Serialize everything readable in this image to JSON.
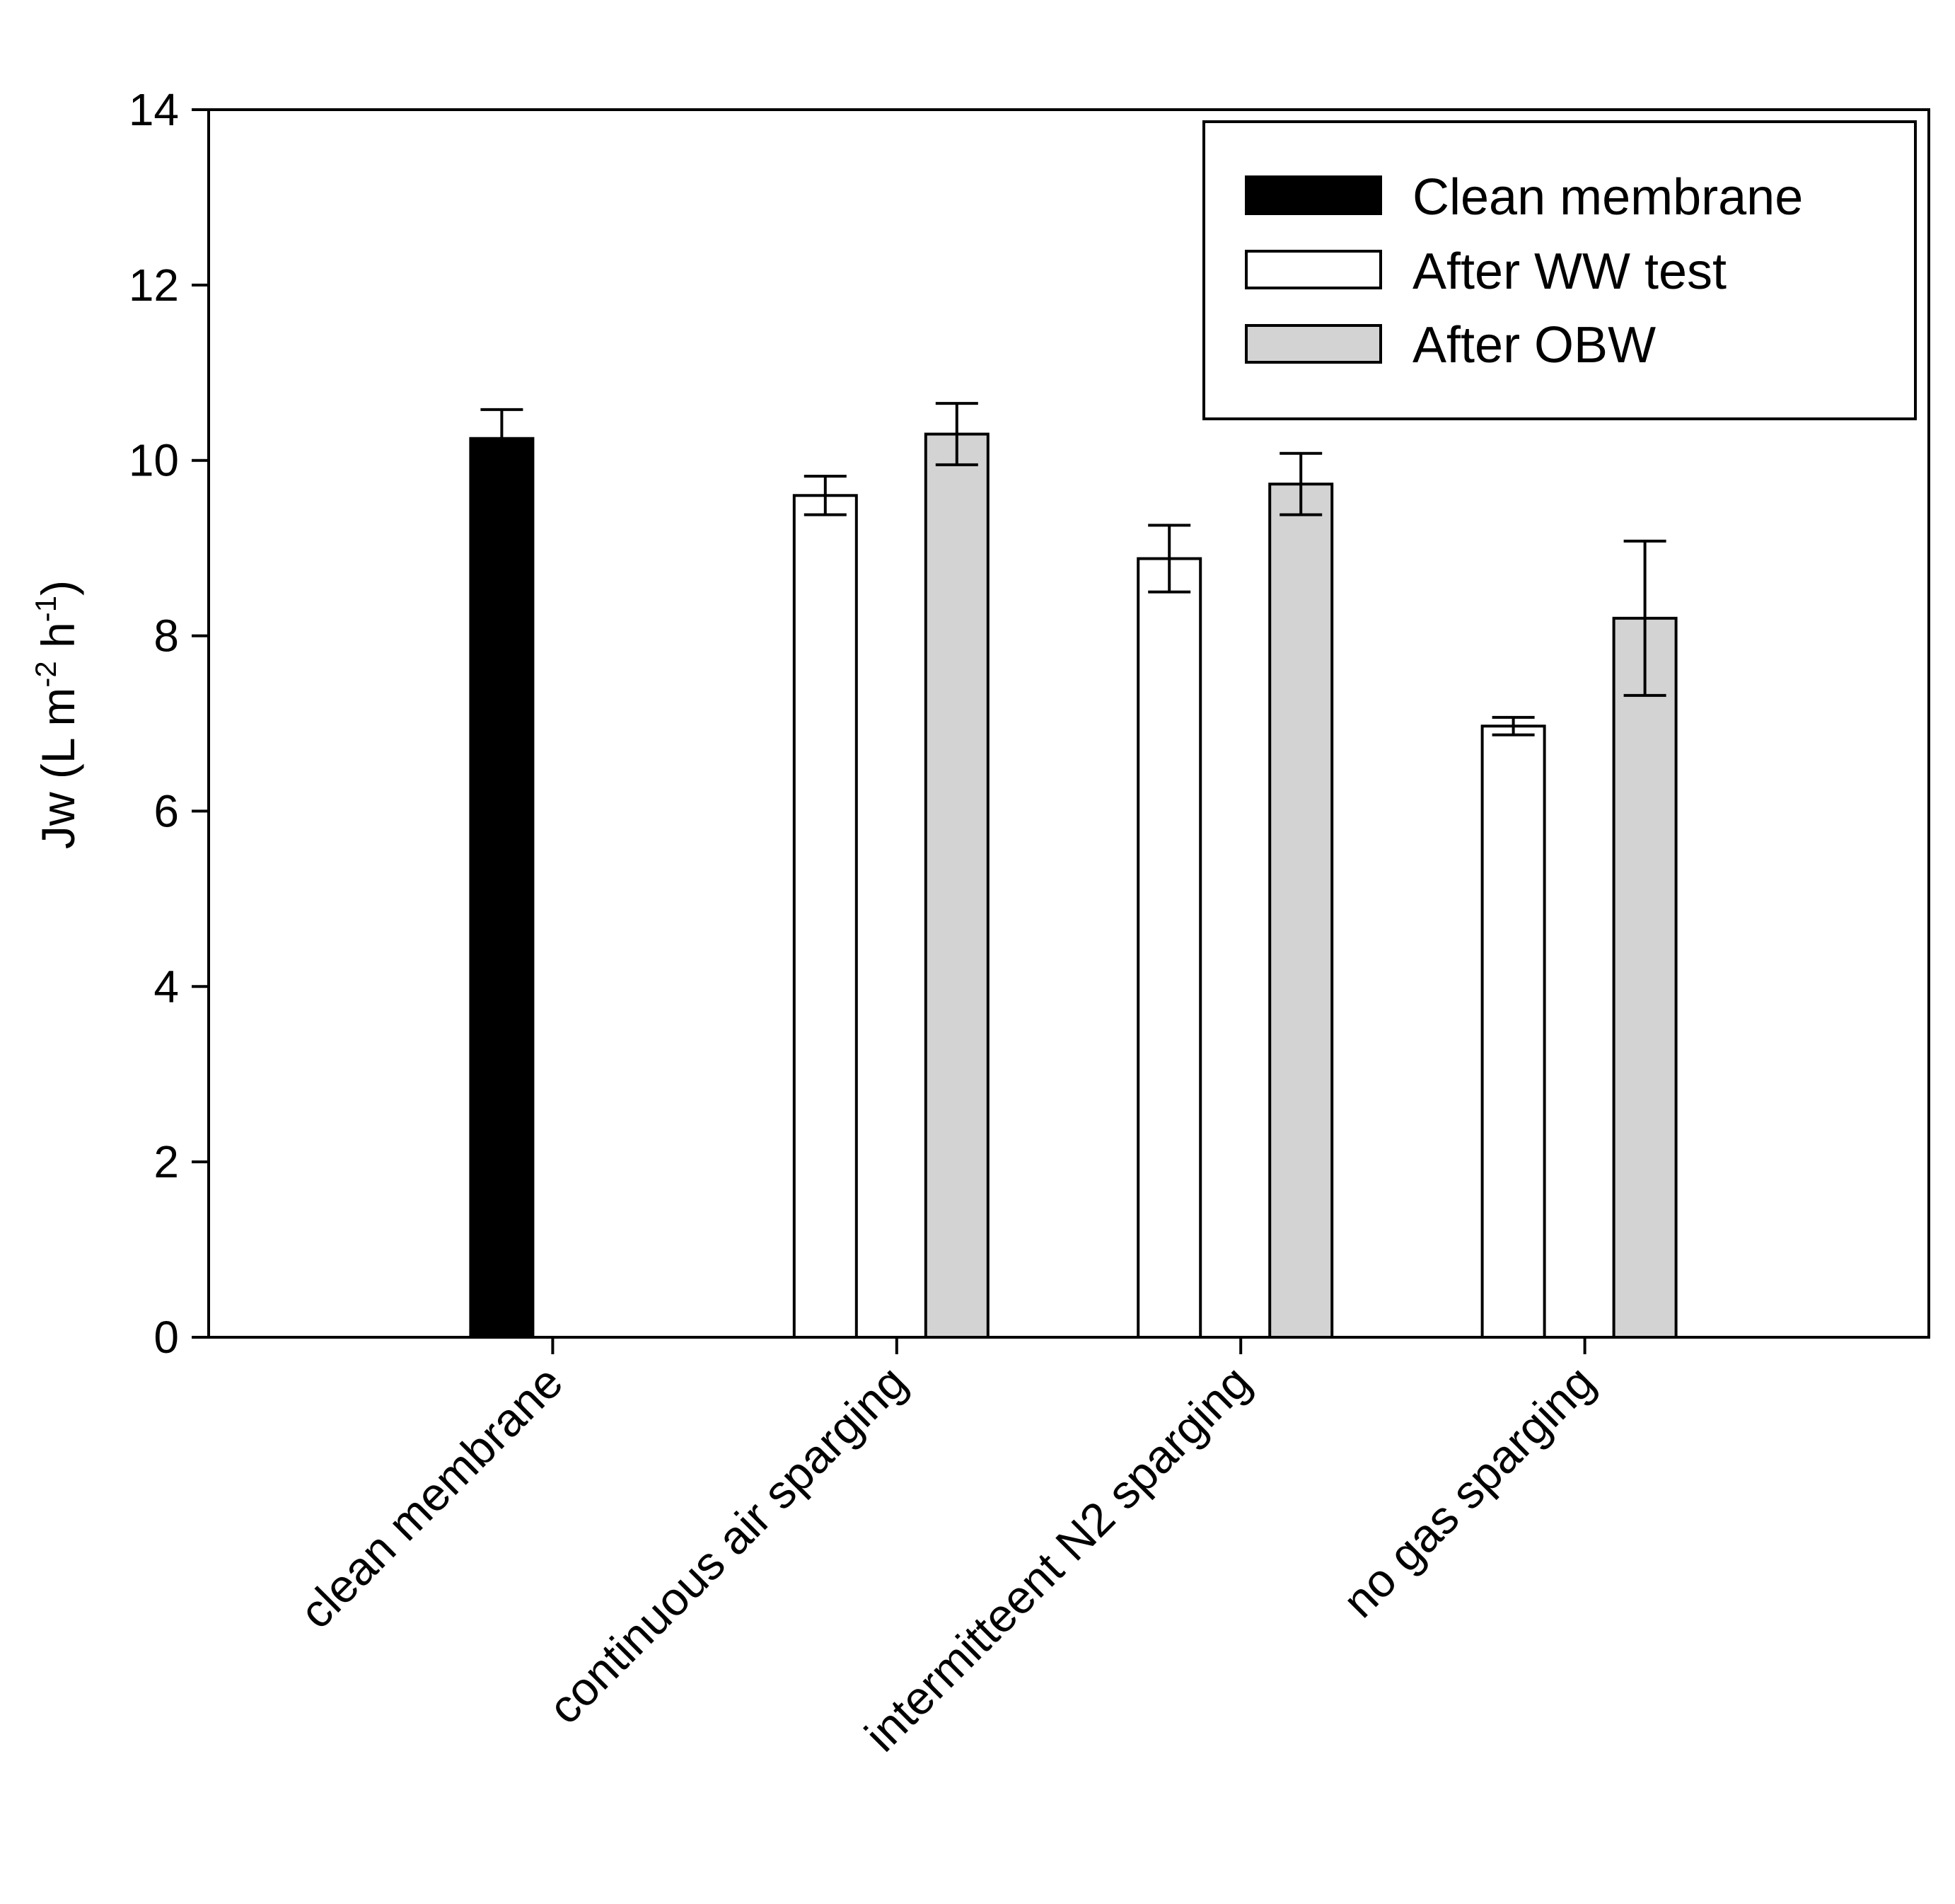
{
  "chart_data": {
    "type": "bar",
    "categories": [
      "clean membrane",
      "continuous air sparging",
      "intermitteent N2 sparging",
      "no gas sparging"
    ],
    "series": [
      {
        "name": "Clean membrane",
        "color": "#000000",
        "values": [
          10.25,
          null,
          null,
          null
        ],
        "errors": [
          0.33,
          null,
          null,
          null
        ]
      },
      {
        "name": "After WW test",
        "color": "#ffffff",
        "values": [
          null,
          9.6,
          8.88,
          6.97
        ],
        "errors": [
          null,
          0.22,
          0.38,
          0.1
        ]
      },
      {
        "name": "After OBW",
        "color": "#d3d3d3",
        "values": [
          null,
          10.3,
          9.73,
          8.2
        ],
        "errors": [
          null,
          0.35,
          0.35,
          0.88
        ]
      }
    ],
    "ylabel": {
      "main": "Jw (L m",
      "sup1": "-2",
      "mid": " h",
      "sup2": "-1",
      "end": ")"
    },
    "xlabel": "",
    "ylim": [
      0,
      14
    ],
    "yticks": [
      "0",
      "2",
      "4",
      "6",
      "8",
      "10",
      "12",
      "14"
    ],
    "legend": "top-right",
    "grid": false
  }
}
